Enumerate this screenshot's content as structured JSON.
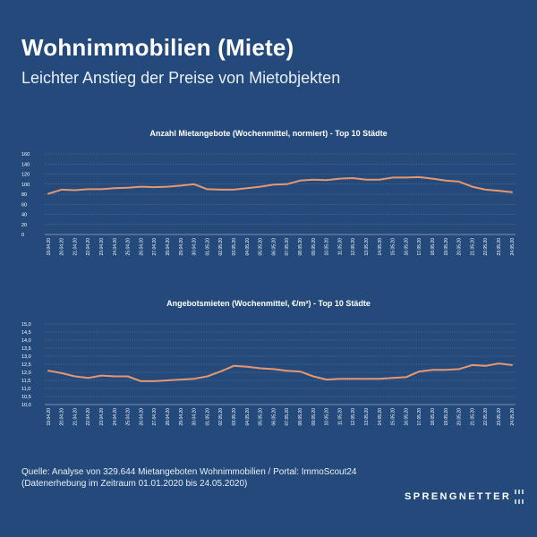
{
  "header": {
    "title": "Wohnimmobilien (Miete)",
    "subtitle": "Leichter Anstieg der Preise von Mietobjekten"
  },
  "footer": {
    "source": "Quelle: Analyse von 329.644 Mietangeboten Wohnimmobilien / Portal: ImmoScout24",
    "period": "(Datenerhebung im Zeitraum 01.01.2020 bis 24.05.2020)"
  },
  "brand": {
    "name": "SPRENGNETTER"
  },
  "colors": {
    "background": "#244a7c",
    "series": "#e8976d"
  },
  "chart_data": [
    {
      "type": "line",
      "title": "Anzahl Mietangebote (Wochenmittel, normiert) - Top 10 Städte",
      "xlabel": "",
      "ylabel": "",
      "ylim": [
        0,
        160
      ],
      "yticks": [
        "0",
        "20",
        "40",
        "60",
        "80",
        "100",
        "120",
        "140",
        "160"
      ],
      "grid": true,
      "categories": [
        "19.04.20",
        "20.04.20",
        "21.04.20",
        "22.04.20",
        "23.04.20",
        "24.04.20",
        "25.04.20",
        "26.04.20",
        "27.04.20",
        "28.04.20",
        "29.04.20",
        "30.04.20",
        "01.05.20",
        "02.05.20",
        "03.05.20",
        "04.05.20",
        "05.05.20",
        "06.05.20",
        "07.05.20",
        "08.05.20",
        "09.05.20",
        "10.05.20",
        "11.05.20",
        "12.05.20",
        "13.05.20",
        "14.05.20",
        "15.05.20",
        "16.05.20",
        "17.05.20",
        "18.05.20",
        "19.05.20",
        "20.05.20",
        "21.05.20",
        "22.05.20",
        "23.05.20",
        "24.05.20"
      ],
      "series": [
        {
          "name": "Anzahl Mietangebote",
          "values": [
            81,
            89,
            88,
            90,
            90,
            92,
            93,
            95,
            94,
            95,
            97,
            100,
            90,
            89,
            89,
            92,
            95,
            99,
            100,
            107,
            109,
            108,
            111,
            112,
            109,
            109,
            113,
            113,
            114,
            111,
            107,
            105,
            95,
            89,
            87,
            84
          ]
        }
      ]
    },
    {
      "type": "line",
      "title": "Angebotsmieten (Wochenmittel, €/m²) - Top 10 Städte",
      "xlabel": "",
      "ylabel": "",
      "ylim": [
        10.0,
        15.0
      ],
      "yticks": [
        "10,0",
        "10,5",
        "11,0",
        "11,5",
        "12,0",
        "12,5",
        "13,0",
        "13,5",
        "14,0",
        "14,5",
        "15,0"
      ],
      "grid": true,
      "categories": [
        "19.04.20",
        "20.04.20",
        "21.04.20",
        "22.04.20",
        "23.04.20",
        "24.04.20",
        "25.04.20",
        "26.04.20",
        "27.04.20",
        "28.04.20",
        "29.04.20",
        "30.04.20",
        "01.05.20",
        "02.05.20",
        "03.05.20",
        "04.05.20",
        "05.05.20",
        "06.05.20",
        "07.05.20",
        "08.05.20",
        "09.05.20",
        "10.05.20",
        "11.05.20",
        "12.05.20",
        "13.05.20",
        "14.05.20",
        "15.05.20",
        "16.05.20",
        "17.05.20",
        "18.05.20",
        "19.05.20",
        "20.05.20",
        "21.05.20",
        "22.05.20",
        "23.05.20",
        "24.05.20"
      ],
      "series": [
        {
          "name": "Angebotsmieten",
          "values": [
            12.1,
            11.95,
            11.75,
            11.65,
            11.8,
            11.75,
            11.75,
            11.45,
            11.45,
            11.5,
            11.55,
            11.6,
            11.75,
            12.05,
            12.4,
            12.35,
            12.25,
            12.2,
            12.1,
            12.05,
            11.75,
            11.55,
            11.6,
            11.6,
            11.6,
            11.6,
            11.65,
            11.7,
            12.05,
            12.15,
            12.15,
            12.2,
            12.45,
            12.4,
            12.55,
            12.45
          ]
        }
      ]
    }
  ]
}
